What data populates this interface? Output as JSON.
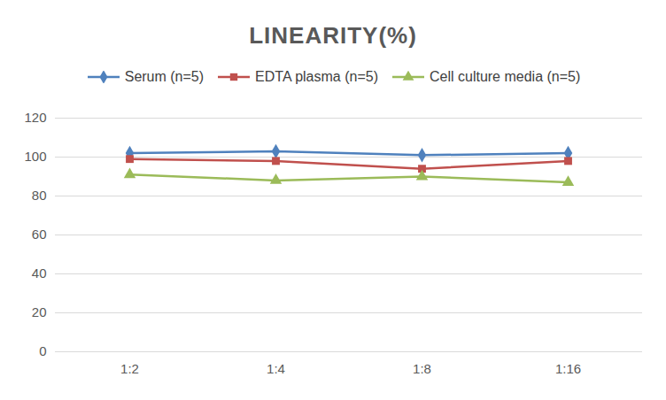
{
  "chart_data": {
    "type": "line",
    "title": "LINEARITY(%)",
    "categories": [
      "1:2",
      "1:4",
      "1:8",
      "1:16"
    ],
    "series": [
      {
        "name": "Serum (n=5)",
        "color": "#4f81bd",
        "marker": "diamond",
        "values": [
          102,
          103,
          101,
          102
        ]
      },
      {
        "name": "EDTA plasma (n=5)",
        "color": "#c0504d",
        "marker": "square",
        "values": [
          99,
          98,
          94,
          98
        ]
      },
      {
        "name": "Cell culture media (n=5)",
        "color": "#9bbb59",
        "marker": "triangle",
        "values": [
          91,
          88,
          90,
          87
        ]
      }
    ],
    "ylim": [
      0,
      120
    ],
    "yticks": [
      0,
      20,
      40,
      60,
      80,
      100,
      120
    ],
    "grid": true,
    "legend": "top"
  }
}
